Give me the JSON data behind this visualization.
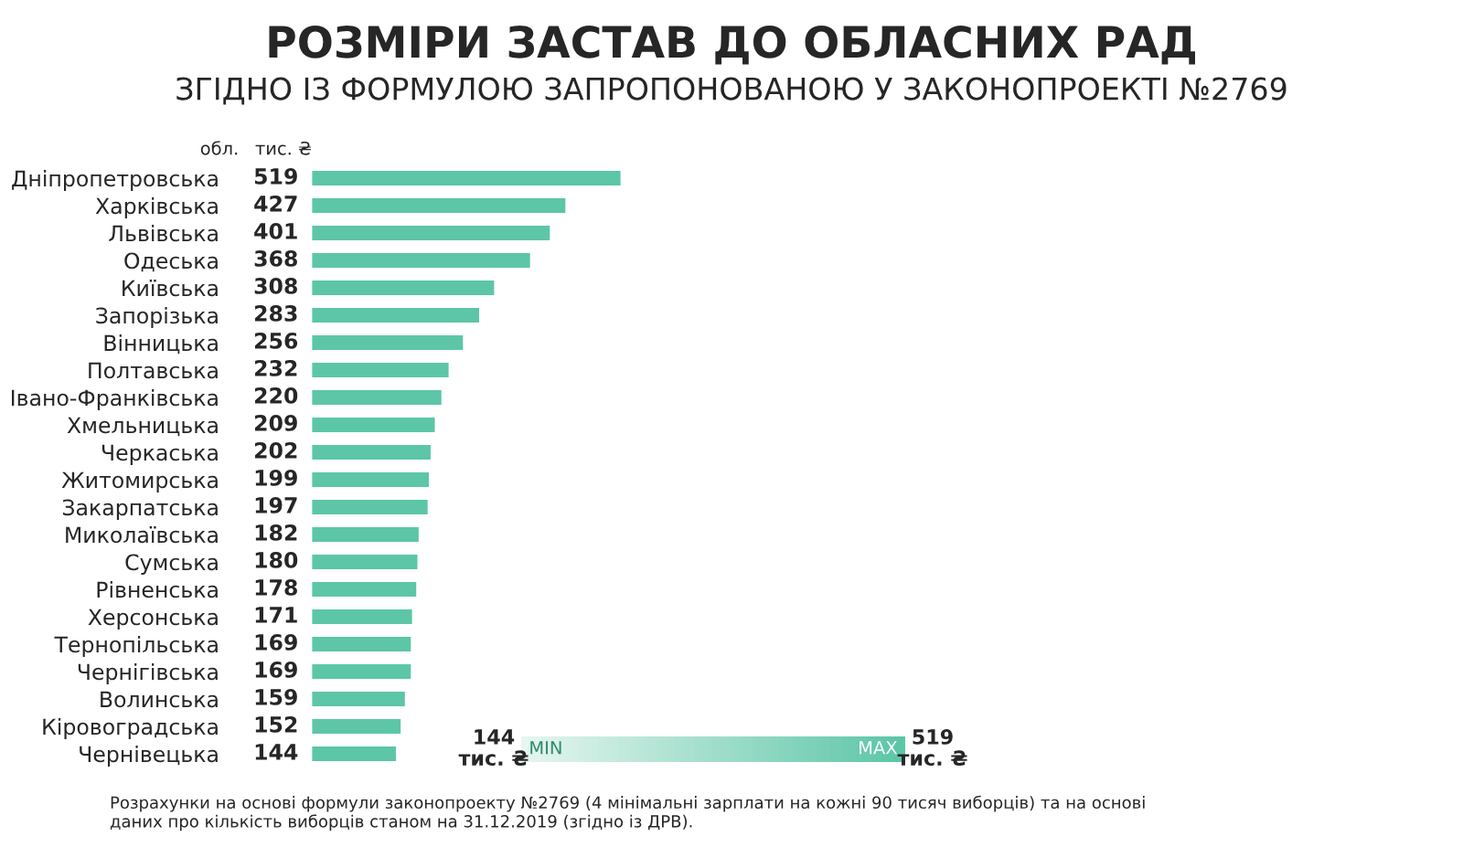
{
  "chart_data": {
    "type": "bar",
    "orientation": "horizontal",
    "title": "РОЗМІРИ ЗАСТАВ ДО ОБЛАСНИХ РАД",
    "subtitle": "ЗГІДНО ІЗ ФОРМУЛОЮ ЗАПРОПОНОВАНОЮ У ЗАКОНОПРОЕКТІ №2769",
    "categories": [
      "Дніпропетровська",
      "Харківська",
      "Львівська",
      "Одеська",
      "Київська",
      "Запорізька",
      "Вінницька",
      "Полтавська",
      "Івано-Франківська",
      "Хмельницька",
      "Черкаська",
      "Житомирська",
      "Закарпатська",
      "Миколаївська",
      "Сумська",
      "Рівненська",
      "Херсонська",
      "Тернопільська",
      "Чернігівська",
      "Волинська",
      "Кіровоградська",
      "Чернівецька"
    ],
    "values": [
      519,
      427,
      401,
      368,
      308,
      283,
      256,
      232,
      220,
      209,
      202,
      199,
      197,
      182,
      180,
      178,
      171,
      169,
      169,
      159,
      152,
      144
    ],
    "color": "#5cc6a7",
    "data_labels": true,
    "xlim": [
      0,
      519
    ],
    "tick_labels": "y",
    "grid": false,
    "legend": false,
    "annotations": [
      "обл.",
      "тис. ₴",
      "144 тис. ₴",
      "MIN",
      "MAX",
      "519 тис. ₴",
      "Розрахунки на основі формули законопроекту №2769 (4 мінімальні зарплати на кожні 90 тисяч виборців) та на основі даних про кількість виборців станом на 31.12.2019 (згідно із ДРВ)."
    ]
  }
}
